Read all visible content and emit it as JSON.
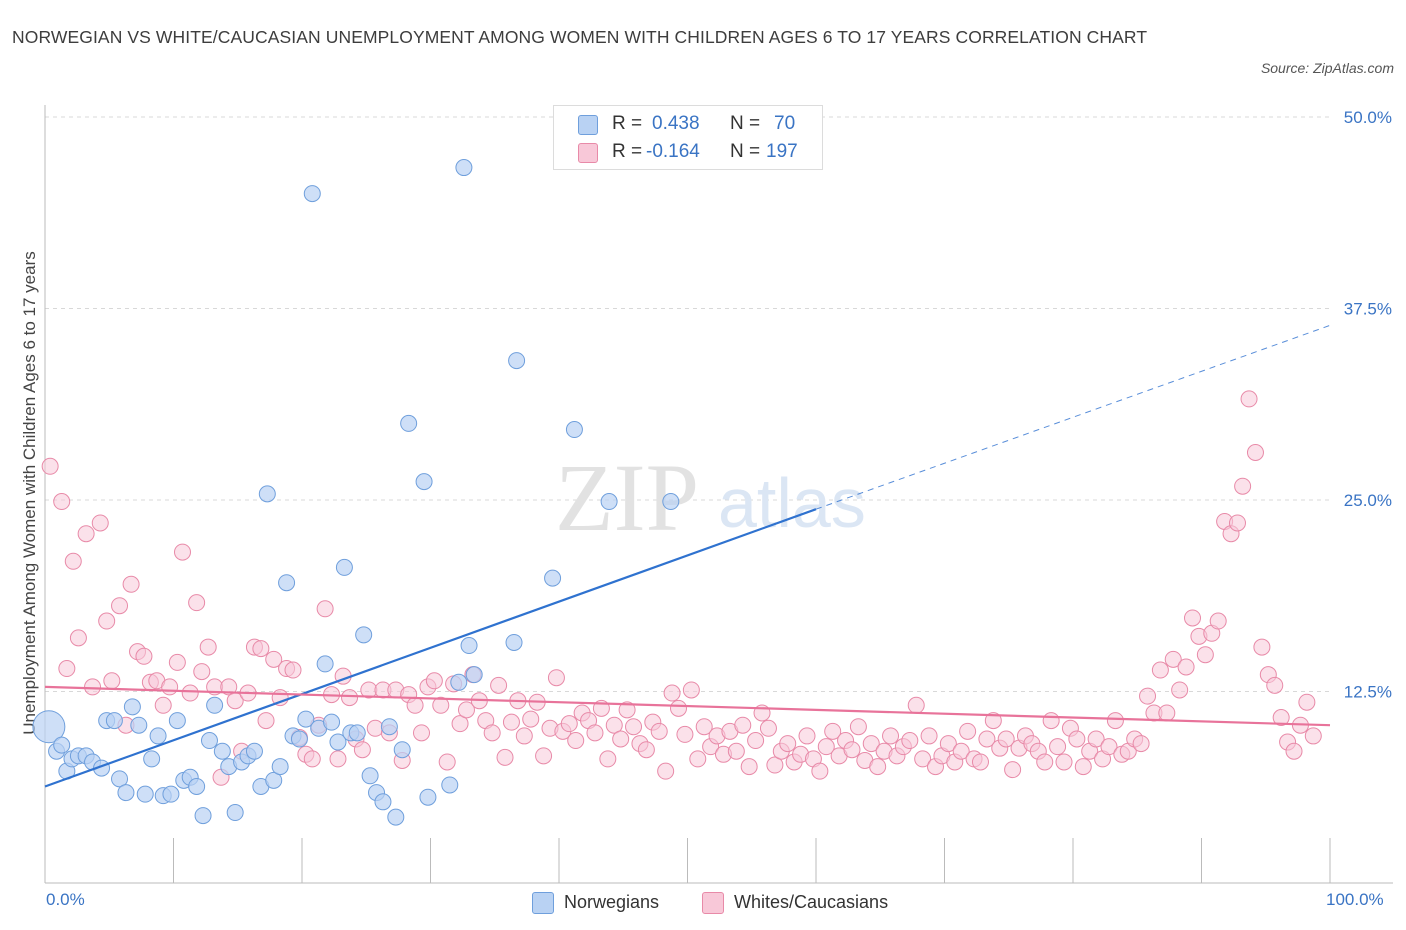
{
  "title": "NORWEGIAN VS WHITE/CAUCASIAN UNEMPLOYMENT AMONG WOMEN WITH CHILDREN AGES 6 TO 17 YEARS CORRELATION CHART",
  "source": "Source: ZipAtlas.com",
  "watermark": {
    "zip": "ZIP",
    "atlas": "atlas"
  },
  "colors": {
    "norwegian_fill": "#b9d2f3",
    "norwegian_stroke": "#6f9fdc",
    "norwegian_line": "#2f72cf",
    "white_fill": "#f8c8d8",
    "white_stroke": "#e88aa8",
    "white_line": "#e8739a",
    "axis_label": "#3a74c4",
    "grid": "#d8d8d8"
  },
  "legend_top": {
    "rows": [
      {
        "r_label": "R =",
        "r_value": "0.438",
        "n_label": "N =",
        "n_value": "70"
      },
      {
        "r_label": "R =",
        "r_value": "-0.164",
        "n_label": "N =",
        "n_value": "197"
      }
    ]
  },
  "legend_bottom": [
    "Norwegians",
    "Whites/Caucasians"
  ],
  "x_axis": {
    "min_label": "0.0%",
    "max_label": "100.0%"
  },
  "y_axis_label": "Unemployment Among Women with Children Ages 6 to 17 years",
  "chart_data": {
    "type": "scatter",
    "title": "NORWEGIAN VS WHITE/CAUCASIAN UNEMPLOYMENT AMONG WOMEN WITH CHILDREN AGES 6 TO 17 YEARS CORRELATION CHART",
    "xlabel": "",
    "ylabel": "Unemployment Among Women with Children Ages 6 to 17 years",
    "xlim": [
      0,
      100
    ],
    "ylim": [
      0,
      50
    ],
    "y_ticks": [
      12.5,
      25.0,
      37.5,
      50.0
    ],
    "y_tick_labels": [
      "12.5%",
      "25.0%",
      "37.5%",
      "50.0%"
    ],
    "x_tick_labels": [
      "0.0%",
      "100.0%"
    ],
    "grid": true,
    "legend_position": "top-center",
    "series": [
      {
        "name": "Norwegians",
        "r": 0.438,
        "n": 70,
        "trend": {
          "x": [
            0,
            60
          ],
          "y": [
            6.3,
            24.4
          ],
          "dashed_extension": {
            "x": [
              60,
              100
            ],
            "y": [
              24.4,
              36.4
            ]
          }
        },
        "points": [
          [
            0.3,
            10.2
          ],
          [
            0.9,
            8.6
          ],
          [
            1.3,
            9.0
          ],
          [
            1.7,
            7.3
          ],
          [
            2.1,
            8.1
          ],
          [
            2.6,
            8.3
          ],
          [
            3.2,
            8.3
          ],
          [
            3.7,
            7.9
          ],
          [
            4.4,
            7.5
          ],
          [
            4.8,
            10.6
          ],
          [
            5.4,
            10.6
          ],
          [
            5.8,
            6.8
          ],
          [
            6.3,
            5.9
          ],
          [
            6.8,
            11.5
          ],
          [
            7.3,
            10.3
          ],
          [
            7.8,
            5.8
          ],
          [
            8.3,
            8.1
          ],
          [
            8.8,
            9.6
          ],
          [
            9.2,
            5.7
          ],
          [
            9.8,
            5.8
          ],
          [
            10.3,
            10.6
          ],
          [
            10.8,
            6.7
          ],
          [
            11.3,
            6.9
          ],
          [
            11.8,
            6.3
          ],
          [
            12.3,
            4.4
          ],
          [
            12.8,
            9.3
          ],
          [
            13.2,
            11.6
          ],
          [
            13.8,
            8.6
          ],
          [
            14.3,
            7.6
          ],
          [
            14.8,
            4.6
          ],
          [
            15.3,
            7.9
          ],
          [
            15.8,
            8.3
          ],
          [
            16.3,
            8.6
          ],
          [
            16.8,
            6.3
          ],
          [
            17.3,
            25.4
          ],
          [
            17.8,
            6.7
          ],
          [
            18.3,
            7.6
          ],
          [
            18.8,
            19.6
          ],
          [
            19.3,
            9.6
          ],
          [
            19.8,
            9.4
          ],
          [
            20.3,
            10.7
          ],
          [
            20.8,
            45.0
          ],
          [
            21.3,
            10.1
          ],
          [
            21.8,
            14.3
          ],
          [
            22.3,
            10.5
          ],
          [
            22.8,
            9.2
          ],
          [
            23.3,
            20.6
          ],
          [
            23.8,
            9.8
          ],
          [
            24.3,
            9.8
          ],
          [
            24.8,
            16.2
          ],
          [
            25.3,
            7.0
          ],
          [
            25.8,
            5.9
          ],
          [
            26.3,
            5.3
          ],
          [
            26.8,
            10.2
          ],
          [
            27.3,
            4.3
          ],
          [
            27.8,
            8.7
          ],
          [
            28.3,
            30.0
          ],
          [
            29.5,
            26.2
          ],
          [
            29.8,
            5.6
          ],
          [
            31.5,
            6.4
          ],
          [
            32.2,
            13.1
          ],
          [
            32.6,
            46.7
          ],
          [
            33.0,
            15.5
          ],
          [
            33.4,
            13.6
          ],
          [
            36.5,
            15.7
          ],
          [
            36.7,
            34.1
          ],
          [
            39.5,
            19.9
          ],
          [
            41.2,
            29.6
          ],
          [
            43.9,
            24.9
          ],
          [
            48.7,
            24.9
          ]
        ]
      },
      {
        "name": "Whites/Caucasians",
        "r": -0.164,
        "n": 197,
        "trend": {
          "x": [
            0,
            100
          ],
          "y": [
            12.8,
            10.3
          ]
        },
        "points": [
          [
            0.4,
            27.2
          ],
          [
            1.3,
            24.9
          ],
          [
            1.7,
            14.0
          ],
          [
            2.2,
            21.0
          ],
          [
            2.6,
            16.0
          ],
          [
            3.2,
            22.8
          ],
          [
            3.7,
            12.8
          ],
          [
            4.3,
            23.5
          ],
          [
            4.8,
            17.1
          ],
          [
            5.2,
            13.2
          ],
          [
            5.8,
            18.1
          ],
          [
            6.3,
            10.3
          ],
          [
            6.7,
            19.5
          ],
          [
            7.2,
            15.1
          ],
          [
            7.7,
            14.8
          ],
          [
            8.2,
            13.1
          ],
          [
            8.7,
            13.2
          ],
          [
            9.2,
            11.6
          ],
          [
            9.7,
            12.8
          ],
          [
            10.3,
            14.4
          ],
          [
            10.7,
            21.6
          ],
          [
            11.3,
            12.4
          ],
          [
            11.8,
            18.3
          ],
          [
            12.2,
            13.8
          ],
          [
            12.7,
            15.4
          ],
          [
            13.2,
            12.8
          ],
          [
            13.7,
            6.9
          ],
          [
            14.3,
            12.8
          ],
          [
            14.8,
            11.9
          ],
          [
            15.3,
            8.6
          ],
          [
            15.8,
            12.4
          ],
          [
            16.3,
            15.4
          ],
          [
            16.8,
            15.3
          ],
          [
            17.2,
            10.6
          ],
          [
            17.8,
            14.6
          ],
          [
            18.3,
            12.1
          ],
          [
            18.8,
            14.0
          ],
          [
            19.3,
            13.9
          ],
          [
            19.8,
            9.5
          ],
          [
            20.3,
            8.4
          ],
          [
            20.8,
            8.1
          ],
          [
            21.3,
            10.3
          ],
          [
            21.8,
            17.9
          ],
          [
            22.3,
            12.3
          ],
          [
            22.8,
            8.1
          ],
          [
            23.2,
            13.5
          ],
          [
            23.7,
            12.1
          ],
          [
            24.2,
            9.4
          ],
          [
            24.7,
            8.7
          ],
          [
            25.2,
            12.6
          ],
          [
            25.7,
            10.1
          ],
          [
            26.3,
            12.6
          ],
          [
            26.8,
            9.8
          ],
          [
            27.3,
            12.6
          ],
          [
            27.8,
            8.0
          ],
          [
            28.3,
            12.3
          ],
          [
            28.8,
            11.6
          ],
          [
            29.3,
            9.8
          ],
          [
            29.8,
            12.8
          ],
          [
            30.3,
            13.2
          ],
          [
            30.8,
            11.6
          ],
          [
            31.3,
            7.9
          ],
          [
            31.8,
            13.0
          ],
          [
            32.3,
            10.4
          ],
          [
            32.8,
            11.3
          ],
          [
            33.3,
            13.6
          ],
          [
            33.8,
            11.9
          ],
          [
            34.3,
            10.6
          ],
          [
            34.8,
            9.8
          ],
          [
            35.3,
            12.9
          ],
          [
            35.8,
            8.2
          ],
          [
            36.3,
            10.5
          ],
          [
            36.8,
            11.9
          ],
          [
            37.3,
            9.6
          ],
          [
            37.8,
            10.7
          ],
          [
            38.3,
            11.8
          ],
          [
            38.8,
            8.3
          ],
          [
            39.3,
            10.1
          ],
          [
            39.8,
            13.4
          ],
          [
            40.3,
            9.9
          ],
          [
            40.8,
            10.4
          ],
          [
            41.3,
            9.3
          ],
          [
            41.8,
            11.1
          ],
          [
            42.3,
            10.6
          ],
          [
            42.8,
            9.8
          ],
          [
            43.3,
            11.4
          ],
          [
            43.8,
            8.1
          ],
          [
            44.3,
            10.3
          ],
          [
            44.8,
            9.4
          ],
          [
            45.3,
            11.3
          ],
          [
            45.8,
            10.2
          ],
          [
            46.3,
            9.1
          ],
          [
            46.8,
            8.7
          ],
          [
            47.3,
            10.5
          ],
          [
            47.8,
            9.9
          ],
          [
            48.3,
            7.3
          ],
          [
            48.8,
            12.4
          ],
          [
            49.3,
            11.4
          ],
          [
            49.8,
            9.7
          ],
          [
            50.3,
            12.6
          ],
          [
            50.8,
            8.1
          ],
          [
            51.3,
            10.2
          ],
          [
            51.8,
            8.9
          ],
          [
            52.3,
            9.6
          ],
          [
            52.8,
            8.4
          ],
          [
            53.3,
            9.9
          ],
          [
            53.8,
            8.6
          ],
          [
            54.3,
            10.3
          ],
          [
            54.8,
            7.6
          ],
          [
            55.3,
            9.3
          ],
          [
            55.8,
            11.1
          ],
          [
            56.3,
            10.1
          ],
          [
            56.8,
            7.7
          ],
          [
            57.3,
            8.6
          ],
          [
            57.8,
            9.1
          ],
          [
            58.3,
            7.9
          ],
          [
            58.8,
            8.4
          ],
          [
            59.3,
            9.6
          ],
          [
            59.8,
            8.1
          ],
          [
            60.3,
            7.3
          ],
          [
            60.8,
            8.9
          ],
          [
            61.3,
            9.9
          ],
          [
            61.8,
            8.3
          ],
          [
            62.3,
            9.3
          ],
          [
            62.8,
            8.7
          ],
          [
            63.3,
            10.2
          ],
          [
            63.8,
            8.0
          ],
          [
            64.3,
            9.1
          ],
          [
            64.8,
            7.6
          ],
          [
            65.3,
            8.6
          ],
          [
            65.8,
            9.6
          ],
          [
            66.3,
            8.3
          ],
          [
            66.8,
            8.9
          ],
          [
            67.3,
            9.3
          ],
          [
            67.8,
            11.6
          ],
          [
            68.3,
            8.1
          ],
          [
            68.8,
            9.6
          ],
          [
            69.3,
            7.6
          ],
          [
            69.8,
            8.3
          ],
          [
            70.3,
            9.1
          ],
          [
            70.8,
            7.9
          ],
          [
            71.3,
            8.6
          ],
          [
            71.8,
            9.9
          ],
          [
            72.3,
            8.1
          ],
          [
            72.8,
            7.9
          ],
          [
            73.3,
            9.4
          ],
          [
            73.8,
            10.6
          ],
          [
            74.3,
            8.8
          ],
          [
            74.8,
            9.4
          ],
          [
            75.3,
            7.4
          ],
          [
            75.8,
            8.8
          ],
          [
            76.3,
            9.6
          ],
          [
            76.8,
            9.1
          ],
          [
            77.3,
            8.6
          ],
          [
            77.8,
            7.9
          ],
          [
            78.3,
            10.6
          ],
          [
            78.8,
            8.9
          ],
          [
            79.3,
            7.9
          ],
          [
            79.8,
            10.1
          ],
          [
            80.3,
            9.4
          ],
          [
            80.8,
            7.6
          ],
          [
            81.3,
            8.6
          ],
          [
            81.8,
            9.4
          ],
          [
            82.3,
            8.1
          ],
          [
            82.8,
            8.9
          ],
          [
            83.3,
            10.6
          ],
          [
            83.8,
            8.4
          ],
          [
            84.3,
            8.6
          ],
          [
            84.8,
            9.4
          ],
          [
            85.3,
            9.1
          ],
          [
            85.8,
            12.2
          ],
          [
            86.3,
            11.1
          ],
          [
            86.8,
            13.9
          ],
          [
            87.3,
            11.1
          ],
          [
            87.8,
            14.6
          ],
          [
            88.3,
            12.6
          ],
          [
            88.8,
            14.1
          ],
          [
            89.3,
            17.3
          ],
          [
            89.8,
            16.1
          ],
          [
            90.3,
            14.9
          ],
          [
            90.8,
            16.3
          ],
          [
            91.3,
            17.1
          ],
          [
            91.8,
            23.6
          ],
          [
            92.3,
            22.8
          ],
          [
            92.8,
            23.5
          ],
          [
            93.2,
            25.9
          ],
          [
            93.7,
            31.6
          ],
          [
            94.2,
            28.1
          ],
          [
            94.7,
            15.4
          ],
          [
            95.2,
            13.6
          ],
          [
            95.7,
            12.9
          ],
          [
            96.2,
            10.8
          ],
          [
            96.7,
            9.2
          ],
          [
            97.2,
            8.6
          ],
          [
            97.7,
            10.3
          ],
          [
            98.2,
            11.8
          ],
          [
            98.7,
            9.6
          ]
        ]
      }
    ]
  }
}
